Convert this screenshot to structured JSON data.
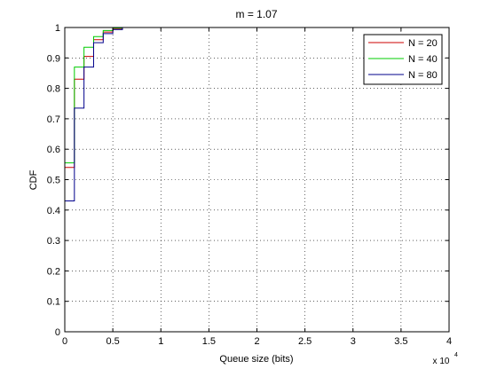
{
  "chart_data": {
    "type": "line",
    "title": "m = 1.07",
    "xlabel": "Queue size (bits)",
    "ylabel": "CDF",
    "x_multiplier_label": "x 10",
    "x_multiplier_exponent": "4",
    "xlim": [
      0,
      40000
    ],
    "ylim": [
      0,
      1
    ],
    "xticks": [
      0,
      5000,
      10000,
      15000,
      20000,
      25000,
      30000,
      35000,
      40000
    ],
    "xtick_labels": [
      "0",
      "0.5",
      "1",
      "1.5",
      "2",
      "2.5",
      "3",
      "3.5",
      "4"
    ],
    "yticks": [
      0,
      0.1,
      0.2,
      0.3,
      0.4,
      0.5,
      0.6,
      0.7,
      0.8,
      0.9,
      1
    ],
    "ytick_labels": [
      "0",
      "0.1",
      "0.2",
      "0.3",
      "0.4",
      "0.5",
      "0.6",
      "0.7",
      "0.8",
      "0.9",
      "1"
    ],
    "grid": true,
    "legend_position": "top-right",
    "step": true,
    "series": [
      {
        "name": "N = 20",
        "color": "#cc0000",
        "x": [
          0,
          1000,
          2000,
          3000,
          4000,
          5000,
          6000,
          7000
        ],
        "y": [
          0.54,
          0.83,
          0.905,
          0.96,
          0.985,
          0.995,
          1.0,
          1.0
        ]
      },
      {
        "name": "N = 40",
        "color": "#00cc00",
        "x": [
          0,
          1000,
          2000,
          3000,
          4000,
          5000,
          6000,
          7000
        ],
        "y": [
          0.555,
          0.87,
          0.935,
          0.97,
          0.99,
          0.998,
          1.0,
          1.0
        ]
      },
      {
        "name": "N = 80",
        "color": "#00008b",
        "x": [
          0,
          1000,
          2000,
          3000,
          4000,
          5000,
          6000,
          7000
        ],
        "y": [
          0.43,
          0.735,
          0.87,
          0.95,
          0.98,
          0.993,
          1.0,
          1.0
        ]
      }
    ]
  }
}
